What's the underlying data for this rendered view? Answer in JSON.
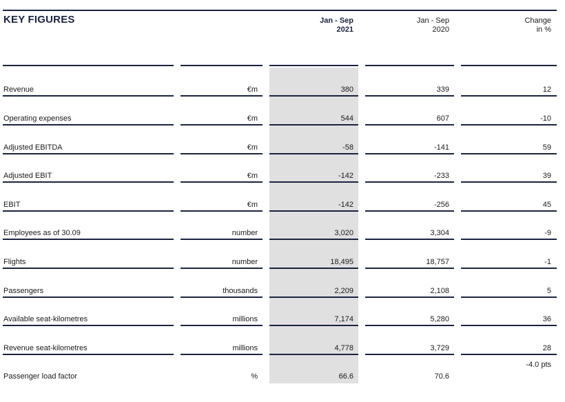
{
  "title": "KEY FIGURES",
  "columns": {
    "current": [
      "Jan - Sep",
      "2021"
    ],
    "previous": [
      "Jan - Sep",
      "2020"
    ],
    "change": [
      "Change",
      "in %"
    ]
  },
  "rows": [
    {
      "label": "Revenue",
      "unit": "€m",
      "v2021": "380",
      "v2020": "339",
      "change": "12"
    },
    {
      "label": "Operating expenses",
      "unit": "€m",
      "v2021": "544",
      "v2020": "607",
      "change": "-10"
    },
    {
      "label": "Adjusted EBITDA",
      "unit": "€m",
      "v2021": "-58",
      "v2020": "-141",
      "change": "59"
    },
    {
      "label": "Adjusted EBIT",
      "unit": "€m",
      "v2021": "-142",
      "v2020": "-233",
      "change": "39"
    },
    {
      "label": "EBIT",
      "unit": "€m",
      "v2021": "-142",
      "v2020": "-256",
      "change": "45"
    },
    {
      "label": "Employees as of 30.09",
      "unit": "number",
      "v2021": "3,020",
      "v2020": "3,304",
      "change": "-9"
    },
    {
      "label": "Flights",
      "unit": "number",
      "v2021": "18,495",
      "v2020": "18,757",
      "change": "-1"
    },
    {
      "label": "Passengers",
      "unit": "thousands",
      "v2021": "2,209",
      "v2020": "2,108",
      "change": "5"
    },
    {
      "label": "Available seat-kilometres",
      "unit": "millions",
      "v2021": "7,174",
      "v2020": "5,280",
      "change": "36"
    },
    {
      "label": "Revenue seat-kilometres",
      "unit": "millions",
      "v2021": "4,778",
      "v2020": "3,729",
      "change": "28"
    },
    {
      "label": "Passenger load factor",
      "unit": "%",
      "v2021": "66.6",
      "v2020": "70.6",
      "change": "-4.0 pts"
    }
  ]
}
